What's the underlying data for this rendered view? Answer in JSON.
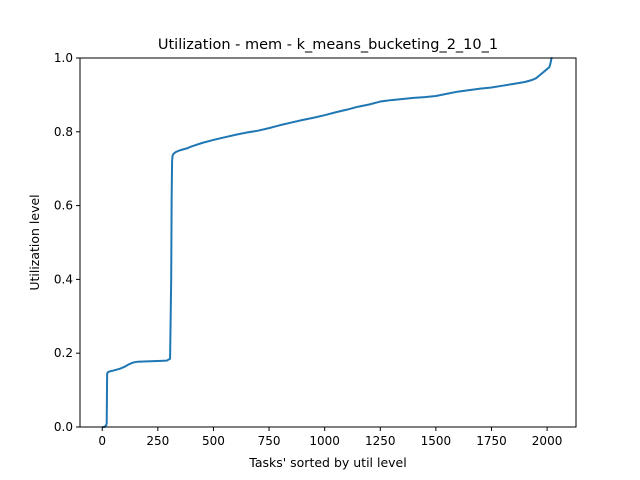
{
  "chart_data": {
    "type": "line",
    "title": "Utilization - mem - k_means_bucketing_2_10_1",
    "xlabel": "Tasks' sorted by util level",
    "ylabel": "Utilization level",
    "xlim": [
      -100,
      2130
    ],
    "ylim": [
      0.0,
      1.0
    ],
    "xticks": [
      0,
      250,
      500,
      750,
      1000,
      1250,
      1500,
      1750,
      2000
    ],
    "xtick_labels": [
      "0",
      "250",
      "500",
      "750",
      "1000",
      "1250",
      "1500",
      "1750",
      "2000"
    ],
    "yticks": [
      0.0,
      0.2,
      0.4,
      0.6,
      0.8,
      1.0
    ],
    "ytick_labels": [
      "0.0",
      "0.2",
      "0.4",
      "0.6",
      "0.8",
      "1.0"
    ],
    "grid": false,
    "line_color": "#1f77b4",
    "series": [
      {
        "x": [
          0,
          10,
          18,
          20,
          22,
          25,
          30,
          50,
          80,
          100,
          120,
          140,
          160,
          200,
          250,
          290,
          305,
          310,
          312,
          314,
          316,
          320,
          330,
          350,
          380,
          400,
          450,
          500,
          550,
          600,
          650,
          700,
          750,
          800,
          850,
          900,
          950,
          1000,
          1050,
          1100,
          1150,
          1200,
          1250,
          1300,
          1350,
          1400,
          1450,
          1500,
          1550,
          1600,
          1650,
          1700,
          1750,
          1800,
          1850,
          1900,
          1930,
          1950,
          1970,
          1990,
          2000,
          2010,
          2015,
          2020,
          2024
        ],
        "y": [
          0.0,
          0.0,
          0.005,
          0.01,
          0.145,
          0.148,
          0.15,
          0.153,
          0.158,
          0.163,
          0.17,
          0.175,
          0.177,
          0.178,
          0.179,
          0.18,
          0.185,
          0.4,
          0.62,
          0.72,
          0.735,
          0.74,
          0.745,
          0.75,
          0.755,
          0.76,
          0.77,
          0.778,
          0.785,
          0.792,
          0.798,
          0.803,
          0.81,
          0.818,
          0.825,
          0.832,
          0.838,
          0.845,
          0.853,
          0.86,
          0.868,
          0.874,
          0.882,
          0.886,
          0.889,
          0.892,
          0.894,
          0.897,
          0.903,
          0.909,
          0.913,
          0.917,
          0.92,
          0.925,
          0.93,
          0.935,
          0.94,
          0.945,
          0.955,
          0.965,
          0.97,
          0.975,
          0.985,
          1.0,
          1.0
        ]
      }
    ]
  }
}
